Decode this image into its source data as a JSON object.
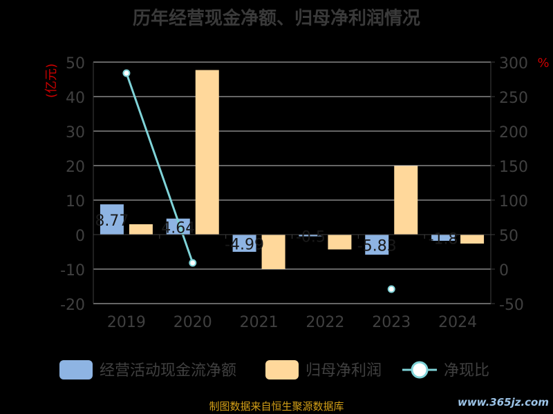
{
  "title": "历年经营现金净额、归母净利润情况",
  "source_note": "制图数据来自恒生聚源数据库",
  "watermark": "www.365jz.com",
  "colors": {
    "operating_cash": "#8eb4e3",
    "net_profit": "#ffd89b",
    "ratio_line": "#7fd3d8",
    "axis_text": "#404040",
    "unit_text": "#cc0000",
    "grid": "#cccccc"
  },
  "chart_data": {
    "type": "bar",
    "title": "历年经营现金净额、归母净利润情况",
    "categories": [
      "2019",
      "2020",
      "2021",
      "2022",
      "2023",
      "2024"
    ],
    "left_axis_label": "(亿元)",
    "right_axis_label": "%",
    "ylim": [
      -20,
      50
    ],
    "y_ticks": [
      "50",
      "40",
      "30",
      "20",
      "10",
      "0",
      "-10",
      "-20"
    ],
    "y2lim": [
      -50,
      300
    ],
    "y2_ticks": [
      "300",
      "250",
      "200",
      "150",
      "100",
      "50",
      "0",
      "-50"
    ],
    "grid": true,
    "legend_position": "bottom",
    "series": [
      {
        "name": "经营活动现金流净额",
        "type": "bar",
        "axis": "left",
        "values": [
          8.77,
          4.64,
          -4.99,
          -0.5,
          -5.83,
          -1.8
        ],
        "labels": [
          "8.77",
          "4.64",
          "-4.99",
          "-0.5",
          "-5.83",
          "-1.8"
        ]
      },
      {
        "name": "归母净利润",
        "type": "bar",
        "axis": "left",
        "values": [
          3.0,
          47.7,
          -10.0,
          -4.3,
          19.9,
          -2.6
        ]
      },
      {
        "name": "净现比",
        "type": "line",
        "axis": "right",
        "values": [
          284,
          9,
          null,
          null,
          -29,
          null
        ]
      }
    ]
  }
}
